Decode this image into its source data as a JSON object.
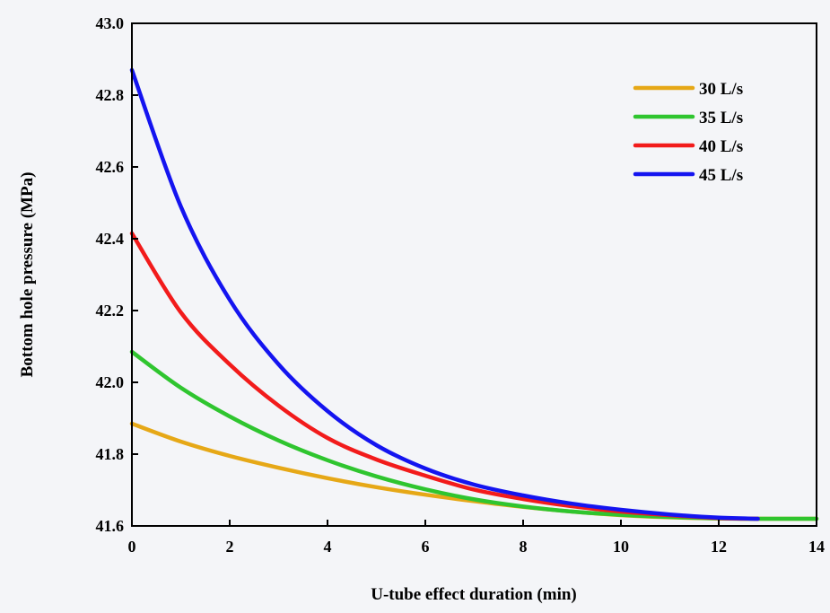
{
  "chart_data": {
    "type": "line",
    "title": "",
    "xlabel": "U-tube effect duration (min)",
    "ylabel": "Bottom hole pressure (MPa)",
    "xlim": [
      0,
      14
    ],
    "ylim": [
      41.6,
      43.0
    ],
    "xticks": [
      0,
      2,
      4,
      6,
      8,
      10,
      12,
      14
    ],
    "yticks": [
      41.6,
      41.8,
      42.0,
      42.2,
      42.4,
      42.6,
      42.8,
      43.0
    ],
    "ytick_labels": [
      "41.6",
      "41.8",
      "42.0",
      "42.2",
      "42.4",
      "42.6",
      "42.8",
      "43.0"
    ],
    "legend_position": "top-right",
    "grid": false,
    "series": [
      {
        "name": "30 L/s",
        "color": "#e6a817",
        "x": [
          0,
          1,
          2,
          3,
          4,
          5,
          6,
          7,
          8,
          9,
          10,
          11,
          12,
          13,
          14
        ],
        "y": [
          41.885,
          41.835,
          41.795,
          41.762,
          41.733,
          41.708,
          41.687,
          41.669,
          41.653,
          41.64,
          41.63,
          41.624,
          41.621,
          41.62,
          41.62
        ]
      },
      {
        "name": "35 L/s",
        "color": "#2fc52f",
        "x": [
          0,
          1,
          2,
          3,
          4,
          5,
          6,
          7,
          8,
          9,
          10,
          11,
          12,
          13,
          14
        ],
        "y": [
          42.085,
          41.985,
          41.905,
          41.838,
          41.783,
          41.738,
          41.702,
          41.674,
          41.654,
          41.64,
          41.631,
          41.625,
          41.621,
          41.62,
          41.62
        ]
      },
      {
        "name": "40 L/s",
        "color": "#f21b1b",
        "x": [
          0,
          1,
          2,
          3,
          4,
          5,
          6,
          7,
          8,
          9,
          10,
          11,
          12,
          12.8
        ],
        "y": [
          42.415,
          42.195,
          42.05,
          41.935,
          41.845,
          41.785,
          41.74,
          41.701,
          41.675,
          41.655,
          41.64,
          41.63,
          41.622,
          41.62
        ]
      },
      {
        "name": "45 L/s",
        "color": "#1414f0",
        "x": [
          0,
          1,
          2,
          3,
          4,
          5,
          6,
          7,
          8,
          9,
          10,
          11,
          12,
          12.8
        ],
        "y": [
          42.87,
          42.49,
          42.23,
          42.05,
          41.92,
          41.825,
          41.76,
          41.715,
          41.685,
          41.662,
          41.645,
          41.632,
          41.623,
          41.62
        ]
      }
    ]
  }
}
